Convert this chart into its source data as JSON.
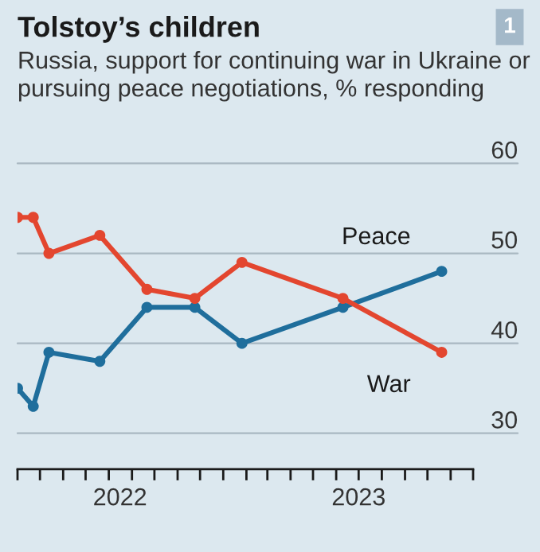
{
  "chart_data": {
    "type": "line",
    "title": "Tolstoy’s children",
    "subtitle": "Russia, support for continuing war in Ukraine or pursuing peace negotiations, % responding",
    "annotations": [
      "1"
    ],
    "x": [
      "2022-04-01",
      "2022-04-22",
      "2022-05-13",
      "2022-07-20",
      "2022-09-21",
      "2022-11-24",
      "2023-01-26",
      "2023-06-10",
      "2023-10-20"
    ],
    "series": [
      {
        "name": "Peace",
        "color": "#1f6e9c",
        "values": [
          35,
          33,
          39,
          38,
          44,
          44,
          40,
          44,
          48
        ]
      },
      {
        "name": "War",
        "color": "#e3462f",
        "values": [
          54,
          54,
          50,
          52,
          46,
          45,
          49,
          45,
          39
        ]
      }
    ],
    "xlim": [
      "2022-04-01",
      "2023-12-01"
    ],
    "xticks": [
      {
        "value": "2022-04-01",
        "label": null
      },
      {
        "value": "2022-05-01",
        "label": null
      },
      {
        "value": "2022-06-01",
        "label": null
      },
      {
        "value": "2022-07-01",
        "label": null
      },
      {
        "value": "2022-08-01",
        "label": null
      },
      {
        "value": "2022-09-01",
        "label": null
      },
      {
        "value": "2022-10-01",
        "label": null
      },
      {
        "value": "2022-11-01",
        "label": null
      },
      {
        "value": "2022-12-01",
        "label": null
      },
      {
        "value": "2023-01-01",
        "label": null
      },
      {
        "value": "2023-02-01",
        "label": null
      },
      {
        "value": "2023-03-01",
        "label": null
      },
      {
        "value": "2023-04-01",
        "label": null
      },
      {
        "value": "2023-05-01",
        "label": null
      },
      {
        "value": "2023-06-01",
        "label": null
      },
      {
        "value": "2023-07-01",
        "label": null
      },
      {
        "value": "2023-08-01",
        "label": null
      },
      {
        "value": "2023-09-01",
        "label": null
      },
      {
        "value": "2023-10-01",
        "label": null
      },
      {
        "value": "2023-11-01",
        "label": null
      },
      {
        "value": "2023-12-01",
        "label": null
      },
      {
        "value": "2022-08-16",
        "label": "2022"
      },
      {
        "value": "2023-07-01",
        "label": "2023"
      }
    ],
    "ylim": [
      26,
      60
    ],
    "yticks": [
      30,
      40,
      50,
      60
    ],
    "grid": "y",
    "marker": "circle",
    "line_style": "solid",
    "legend": false
  }
}
